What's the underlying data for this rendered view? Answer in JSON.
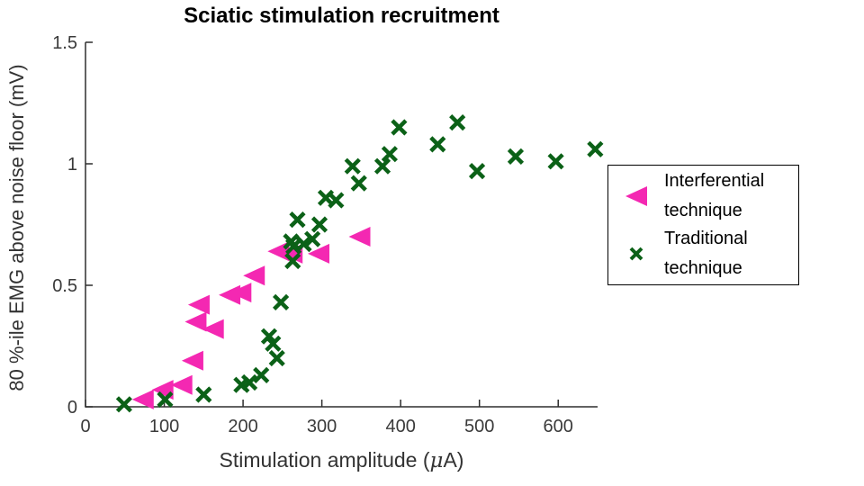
{
  "chart_data": {
    "type": "scatter",
    "title": "Sciatic stimulation recruitment",
    "xlabel": "Stimulation amplitude (μA)",
    "ylabel": "80 %-ile EMG above noise floor (mV)",
    "xlim": [
      0,
      650
    ],
    "ylim": [
      0,
      1.5
    ],
    "xticks": [
      0,
      100,
      200,
      300,
      400,
      500,
      600
    ],
    "yticks": [
      0,
      0.5,
      1,
      1.5
    ],
    "grid": false,
    "legend_position": "right-inside",
    "series": [
      {
        "name": "Interferential technique",
        "marker": "triangle-left",
        "color": "#F428B2",
        "points": [
          [
            74,
            0.03
          ],
          [
            99,
            0.07
          ],
          [
            123,
            0.09
          ],
          [
            137,
            0.19
          ],
          [
            141,
            0.35
          ],
          [
            145,
            0.42
          ],
          [
            163,
            0.32
          ],
          [
            184,
            0.46
          ],
          [
            198,
            0.47
          ],
          [
            215,
            0.54
          ],
          [
            246,
            0.64
          ],
          [
            263,
            0.63
          ],
          [
            297,
            0.63
          ],
          [
            349,
            0.7
          ]
        ]
      },
      {
        "name": "Traditional technique",
        "marker": "x",
        "color": "#0B6117",
        "points": [
          [
            49,
            0.01
          ],
          [
            101,
            0.03
          ],
          [
            150,
            0.05
          ],
          [
            198,
            0.09
          ],
          [
            208,
            0.1
          ],
          [
            223,
            0.13
          ],
          [
            233,
            0.29
          ],
          [
            238,
            0.26
          ],
          [
            243,
            0.2
          ],
          [
            248,
            0.43
          ],
          [
            261,
            0.68
          ],
          [
            263,
            0.6
          ],
          [
            264,
            0.66
          ],
          [
            269,
            0.77
          ],
          [
            277,
            0.67
          ],
          [
            288,
            0.69
          ],
          [
            297,
            0.75
          ],
          [
            305,
            0.86
          ],
          [
            318,
            0.85
          ],
          [
            339,
            0.99
          ],
          [
            347,
            0.92
          ],
          [
            377,
            0.99
          ],
          [
            386,
            1.04
          ],
          [
            398,
            1.15
          ],
          [
            447,
            1.08
          ],
          [
            472,
            1.17
          ],
          [
            497,
            0.97
          ],
          [
            546,
            1.03
          ],
          [
            597,
            1.01
          ],
          [
            647,
            1.06
          ]
        ]
      }
    ]
  },
  "xlabel_rich": {
    "prefix": "Stimulation amplitude (",
    "mu": "μ",
    "suffix": "A)"
  },
  "axis_colors": {
    "axis_line": "#2e2e2e",
    "tick_label": "#3a3a3a",
    "title": "#000000"
  }
}
